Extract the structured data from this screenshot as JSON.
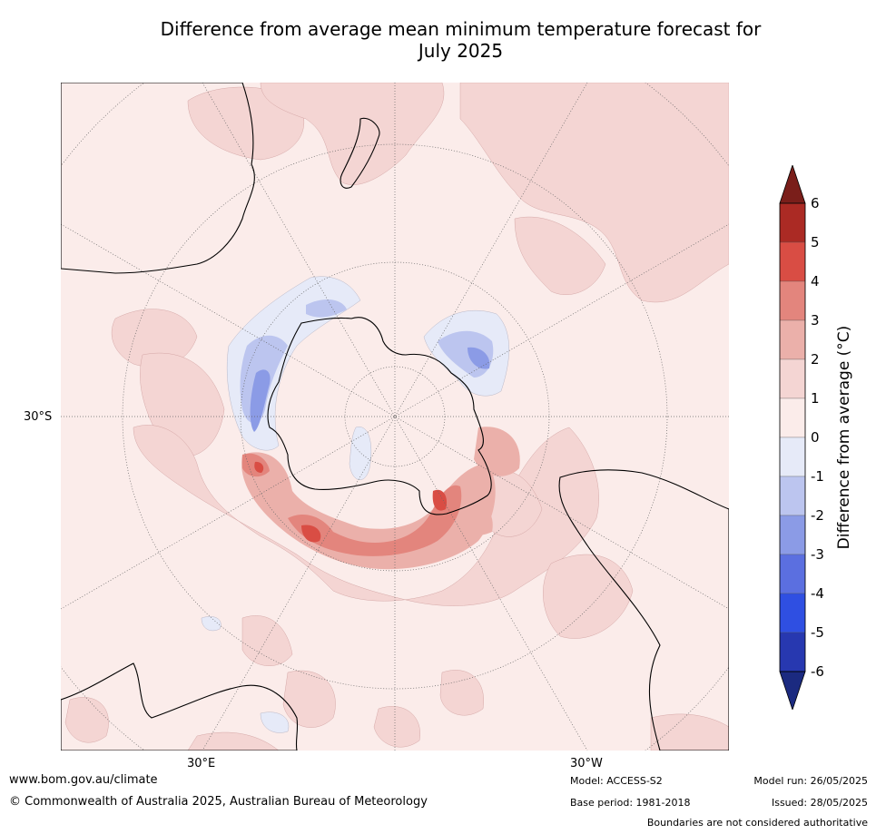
{
  "title": {
    "line1": "Difference from average mean minimum temperature forecast for",
    "line2": "July 2025"
  },
  "map": {
    "projection": "south-polar-stereographic",
    "latitude_label": "30°S",
    "longitude_labels": [
      "30°E",
      "30°W"
    ],
    "colors": {
      "ocean_background": "#fbecea",
      "anomaly_0_to_1": "#fbecea",
      "anomaly_1_to_2": "#f4d5d3",
      "anomaly_2_to_3": "#ebb0aa",
      "anomaly_3_to_4": "#e3857d",
      "anomaly_4_to_5": "#d94d44",
      "anomaly_minus1_to_0": "#e6eaf8",
      "anomaly_minus2_to_minus1": "#bcc5ef",
      "anomaly_minus3_to_minus2": "#8b9be6",
      "coastline": "#000000",
      "borders": "#888888",
      "graticule": "#666666"
    }
  },
  "colorbar": {
    "label": "Difference from average (°C)",
    "ticks": [
      "6",
      "5",
      "4",
      "3",
      "2",
      "1",
      "0",
      "-1",
      "-2",
      "-3",
      "-4",
      "-5",
      "-6"
    ],
    "colors": [
      "#7a1e1a",
      "#ab2a24",
      "#d94d44",
      "#e3857d",
      "#ebb0aa",
      "#f4d5d3",
      "#fbecea",
      "#e6eaf8",
      "#bcc5ef",
      "#8b9be6",
      "#5b6fe0",
      "#2f4fe2",
      "#2738b0",
      "#1b2a80"
    ]
  },
  "footer": {
    "website": "www.bom.gov.au/climate",
    "copyright": "© Commonwealth of Australia 2025, Australian Bureau of Meteorology",
    "model": "Model: ACCESS-S2",
    "base_period": "Base period: 1981-2018",
    "model_run": "Model run: 26/05/2025",
    "issued": "Issued: 28/05/2025",
    "disclaimer": "Boundaries are not considered authoritative"
  }
}
